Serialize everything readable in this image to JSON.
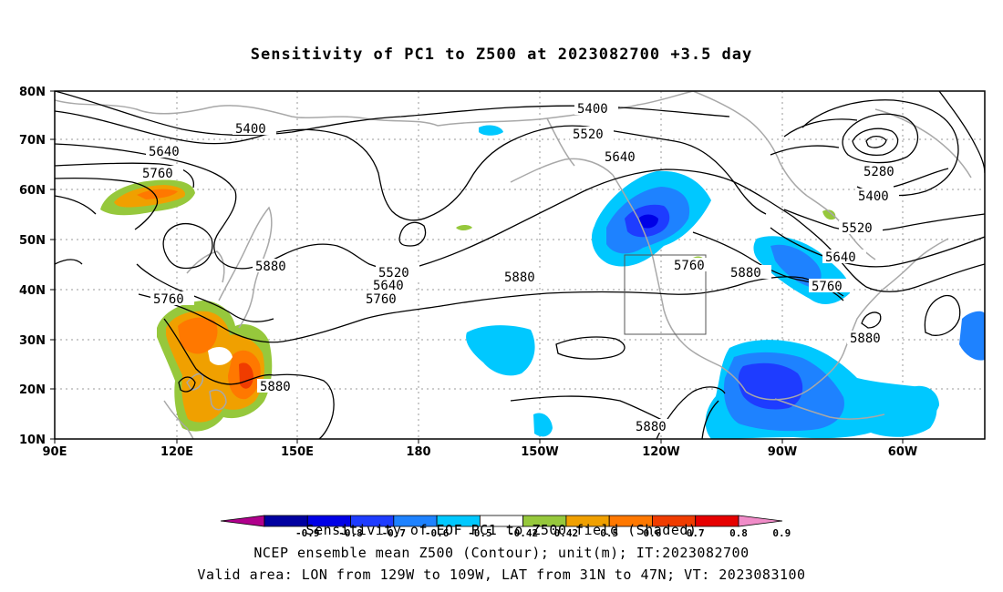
{
  "title": "Sensitivity of PC1 to Z500 at 2023082700 +3.5 day",
  "lat_ticks": [
    "80N",
    "70N",
    "60N",
    "50N",
    "40N",
    "30N",
    "20N",
    "10N"
  ],
  "lon_ticks": [
    "90E",
    "120E",
    "150E",
    "180",
    "150W",
    "120W",
    "90W",
    "60W"
  ],
  "contour_labels": [
    "5400",
    "5520",
    "5640",
    "5760",
    "5880",
    "5280"
  ],
  "shading_legend": {
    "ticks": [
      "-0.9",
      "-0.8",
      "-0.7",
      "-0.6",
      "-0.5",
      "-0.42",
      "0.42",
      "0.5",
      "0.6",
      "0.7",
      "0.8",
      "0.9"
    ],
    "colors": [
      "#b0008c",
      "#0000a0",
      "#0000e6",
      "#1e3cff",
      "#1e82ff",
      "#00c8ff",
      "#ffffff",
      "#96c83c",
      "#f0a000",
      "#ff7800",
      "#f03c00",
      "#e60000",
      "#f08cc8"
    ]
  },
  "captions": {
    "line1": "Sensitivity of EOF PC1 to Z500 field (Shaded)",
    "line2": "NCEP ensemble mean Z500 (Contour); unit(m); IT:2023082700",
    "line3": "Valid area: LON from 129W to 109W, LAT from 31N to 47N; VT: 2023083100"
  },
  "valid_area": {
    "lon_min": -129,
    "lon_max": -109,
    "lat_min": 31,
    "lat_max": 47
  },
  "map_extent": {
    "lon_min": 90,
    "lon_max": 310,
    "lat_min": 10,
    "lat_max": 80
  }
}
